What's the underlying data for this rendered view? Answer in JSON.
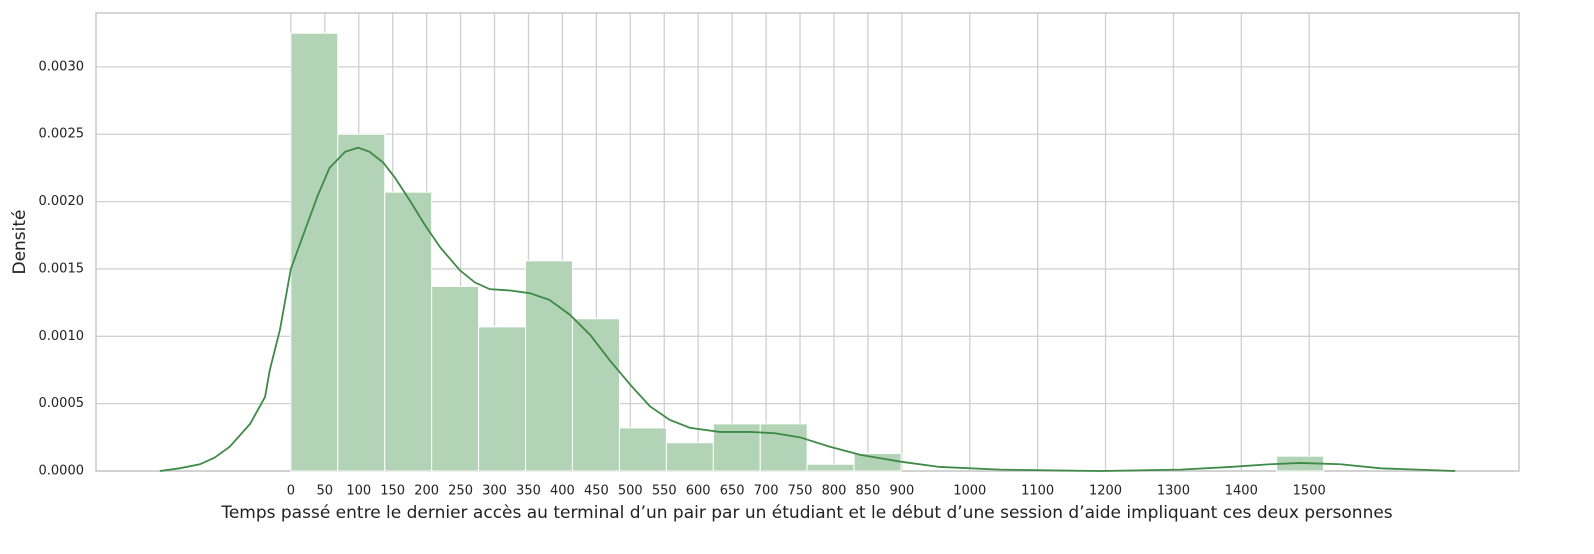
{
  "chart_data": {
    "type": "histogram",
    "x_label": "Temps passé entre le dernier accès au terminal d’un pair par un étudiant et le début d’une session d’aide impliquant ces deux personnes",
    "y_label": "Densité",
    "bins": [
      0,
      69.1,
      138.3,
      207.4,
      276.5,
      345.7,
      414.8,
      484.0,
      553.1,
      622.3,
      691.4,
      760.5,
      829.7,
      898.8,
      968.0,
      1037.1,
      1106.2,
      1175.4,
      1244.5,
      1313.7,
      1382.8,
      1451.9,
      1521.1
    ],
    "values": [
      0.00325,
      0.0025,
      0.00207,
      0.00137,
      0.00107,
      0.00156,
      0.00113,
      0.00032,
      0.00021,
      0.00035,
      0.00035,
      5e-05,
      0.00013,
      0,
      0,
      0,
      0,
      0,
      0,
      0,
      0,
      0.00011
    ],
    "color": "#b2d3b5",
    "kde": {
      "color": "#3e8a46",
      "x": [
        -193,
        -164,
        -134,
        -112,
        -90,
        -60,
        -38,
        -31,
        -16,
        0,
        21,
        40,
        57,
        80,
        99,
        116,
        136,
        153,
        175,
        197,
        220,
        249,
        271,
        293,
        323,
        352,
        381,
        411,
        441,
        470,
        500,
        529,
        558,
        588,
        632,
        677,
        713,
        750,
        794,
        839,
        897,
        956,
        1045,
        1192,
        1311,
        1384,
        1442,
        1487,
        1546,
        1605,
        1715
      ],
      "values": [
        0,
        2e-05,
        5e-05,
        0.0001,
        0.00018,
        0.00035,
        0.00055,
        0.00075,
        0.00105,
        0.0015,
        0.00179,
        0.00205,
        0.00225,
        0.00237,
        0.0024,
        0.00237,
        0.00229,
        0.00218,
        0.00201,
        0.00183,
        0.00166,
        0.00149,
        0.0014,
        0.00135,
        0.00134,
        0.00132,
        0.00127,
        0.00116,
        0.00101,
        0.00082,
        0.00064,
        0.00048,
        0.00038,
        0.00032,
        0.00029,
        0.00029,
        0.00028,
        0.00025,
        0.00018,
        0.00012,
        7e-05,
        3e-05,
        1e-05,
        0,
        1e-05,
        3e-05,
        5e-05,
        6e-05,
        5e-05,
        2e-05,
        0
      ]
    },
    "xlim": [
      -287,
      1809
    ],
    "ylim": [
      0,
      0.0034
    ],
    "xticks": [
      0,
      50,
      100,
      150,
      200,
      250,
      300,
      350,
      400,
      450,
      500,
      550,
      600,
      650,
      700,
      750,
      800,
      850,
      900,
      1000,
      1100,
      1200,
      1300,
      1400,
      1500
    ],
    "yticks": [
      {
        "value": 0,
        "label": "0.0000"
      },
      {
        "value": 0.0005,
        "label": "0.0005"
      },
      {
        "value": 0.001,
        "label": "0.0010"
      },
      {
        "value": 0.0015,
        "label": "0.0015"
      },
      {
        "value": 0.002,
        "label": "0.0020"
      },
      {
        "value": 0.0025,
        "label": "0.0025"
      },
      {
        "value": 0.003,
        "label": "0.0030"
      }
    ],
    "grid": true
  }
}
